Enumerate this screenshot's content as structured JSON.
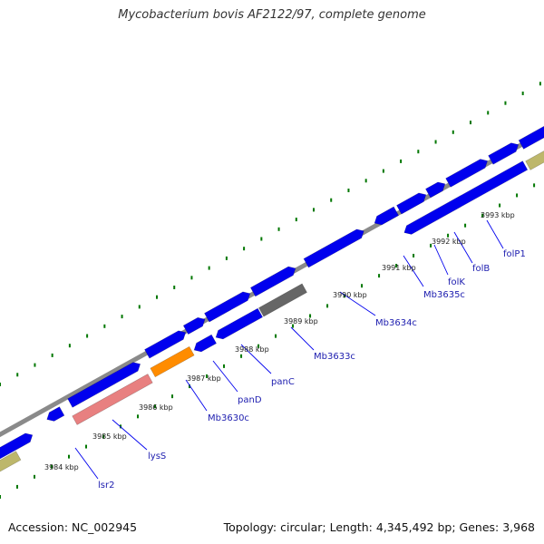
{
  "title": "Mycobacterium bovis AF2122/97, complete genome",
  "footer": {
    "accession": "Accession: NC_002945",
    "stats": "Topology: circular; Length: 4,345,492 bp; Genes: 3,968"
  },
  "colors": {
    "backbone": "#888888",
    "forward_cds": "#0000ee",
    "reverse_cds": "#0000ee",
    "pseudogene": "#e88080",
    "highlight_cds": "#ff8c00",
    "gray_feature": "#666666",
    "khaki_feature": "#bdb76b",
    "label_line": "#0000ee",
    "label_text": "#2020b0",
    "tick": "#007700"
  },
  "scale_ticks": [
    "3984 kbp",
    "3985 kbp",
    "3986 kbp",
    "3987 kbp",
    "3988 kbp",
    "3989 kbp",
    "3990 kbp",
    "3991 kbp",
    "3992 kbp",
    "3993 kbp"
  ],
  "gene_labels": [
    "lsr2",
    "lysS",
    "Mb3630c",
    "panD",
    "panC",
    "Mb3633c",
    "Mb3634c",
    "Mb3635c",
    "folK",
    "folB",
    "folP1"
  ]
}
